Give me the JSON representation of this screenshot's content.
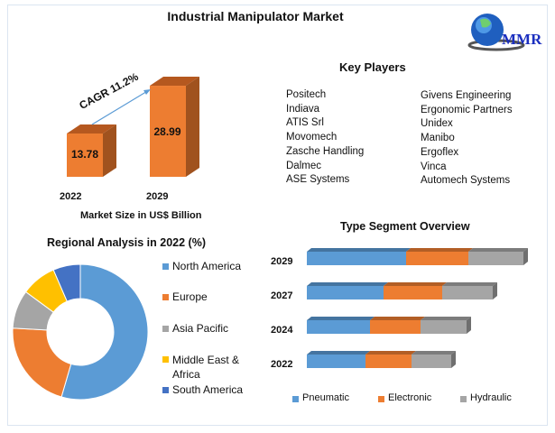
{
  "title": "Industrial Manipulator Market",
  "logo_text": "MMR",
  "colors": {
    "orange": "#ed7d31",
    "orange_dark": "#a0521e",
    "blue": "#5b9bd5",
    "gray": "#a5a5a5",
    "yellow": "#ffc000",
    "navy": "#4472c4",
    "arrow": "#5b9bd5"
  },
  "key_players": {
    "heading": "Key Players",
    "col1": [
      "Positech",
      "Indiava",
      "ATIS Srl",
      "Movomech",
      "Zasche Handling",
      "Dalmec",
      "ASE Systems"
    ],
    "col2": [
      "Givens Engineering",
      "Ergonomic Partners",
      "Unidex",
      "Manibo",
      "Ergoflex",
      "Vinca",
      "Automech Systems"
    ]
  },
  "chart_data": [
    {
      "type": "bar",
      "title": "",
      "xlabel": "Market Size in US$ Billion",
      "categories": [
        "2022",
        "2029"
      ],
      "values": [
        13.78,
        28.99
      ],
      "value_labels": [
        "13.78",
        "28.99"
      ],
      "annotation": "CAGR 11.2%"
    },
    {
      "type": "pie",
      "title": "Regional Analysis in 2022 (%)",
      "donut": true,
      "labels": [
        "North America",
        "Europe",
        "Asia Pacific",
        "Middle East & Africa",
        "South America"
      ],
      "values": [
        54.5,
        21.4,
        9.2,
        8.4,
        6.5
      ],
      "legend": "right"
    },
    {
      "type": "bar",
      "orientation": "horizontal",
      "stacked": true,
      "title": "Type Segment Overview",
      "categories": [
        "2029",
        "2027",
        "2024",
        "2022"
      ],
      "series": [
        {
          "name": "Pneumatic",
          "values": [
            110,
            85,
            70,
            65
          ]
        },
        {
          "name": "Electronic",
          "values": [
            69,
            65,
            56,
            51
          ]
        },
        {
          "name": "Hydraulic",
          "values": [
            61,
            56,
            51,
            44
          ]
        }
      ],
      "legend": "bottom"
    }
  ]
}
